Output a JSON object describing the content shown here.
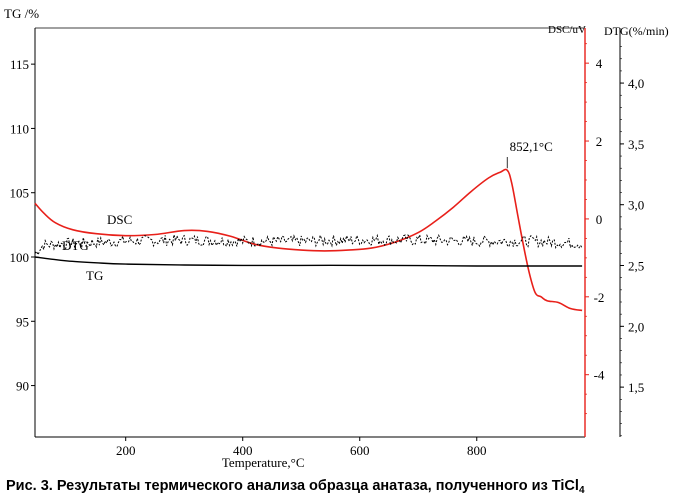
{
  "caption": {
    "text": "Рис. 3. Результаты термического анализа образца анатаза, полученного из TiCl",
    "subscript": "4"
  },
  "chart_data": {
    "type": "line",
    "xlabel": "Temperature,",
    "xlabel_unit": "°C",
    "xlim": [
      45,
      985
    ],
    "x_ticks": [
      200,
      400,
      600,
      800
    ],
    "axes": {
      "tg": {
        "label": "TG /%",
        "range": [
          86,
          117.5
        ],
        "ticks": [
          90,
          95,
          100,
          105,
          110,
          115
        ],
        "color": "#000000"
      },
      "dsc": {
        "label": "DSC/uV",
        "range": [
          -5.6,
          4.8
        ],
        "ticks": [
          -4,
          -2,
          0,
          2,
          4
        ],
        "color": "#e8201a"
      },
      "dtg": {
        "label": "DTG(%/min)",
        "range": [
          1.09,
          4.42
        ],
        "ticks": [
          "1,5",
          "2,0",
          "2,5",
          "3,0",
          "3,5",
          "4,0"
        ],
        "tick_values": [
          1.5,
          2.0,
          2.5,
          3.0,
          3.5,
          4.0
        ],
        "color": "#000000"
      }
    },
    "series": [
      {
        "name": "DSC",
        "axis": "dsc",
        "color": "#e8201a",
        "x": [
          45,
          60,
          80,
          110,
          150,
          200,
          250,
          300,
          340,
          380,
          420,
          460,
          500,
          540,
          580,
          620,
          660,
          700,
          730,
          760,
          790,
          820,
          840,
          852.1,
          860,
          870,
          880,
          890,
          900,
          910,
          920,
          940,
          960,
          980
        ],
        "y": [
          0.4,
          0.15,
          -0.1,
          -0.28,
          -0.38,
          -0.43,
          -0.4,
          -0.3,
          -0.32,
          -0.45,
          -0.65,
          -0.75,
          -0.8,
          -0.82,
          -0.8,
          -0.75,
          -0.6,
          -0.35,
          -0.05,
          0.3,
          0.7,
          1.05,
          1.2,
          1.25,
          0.9,
          0.1,
          -0.7,
          -1.4,
          -1.9,
          -2.0,
          -2.1,
          -2.15,
          -2.3,
          -2.35
        ]
      },
      {
        "name": "DTG",
        "axis": "dtg",
        "color": "#000000",
        "x": [
          45,
          60,
          100,
          150,
          200,
          300,
          400,
          500,
          600,
          700,
          800,
          900,
          980
        ],
        "y": [
          2.6,
          2.67,
          2.68,
          2.69,
          2.7,
          2.71,
          2.7,
          2.7,
          2.71,
          2.71,
          2.7,
          2.7,
          2.68
        ],
        "noisy": true
      },
      {
        "name": "TG",
        "axis": "tg",
        "color": "#000000",
        "x": [
          45,
          70,
          100,
          150,
          200,
          300,
          400,
          500,
          600,
          700,
          800,
          900,
          980
        ],
        "y": [
          100.0,
          99.85,
          99.7,
          99.55,
          99.45,
          99.38,
          99.35,
          99.35,
          99.35,
          99.33,
          99.3,
          99.3,
          99.3
        ]
      }
    ],
    "annotations": [
      {
        "text": "852,1°C",
        "x": 852.1,
        "axis": "dsc",
        "y": 1.25
      }
    ],
    "labels": {
      "dsc": "DSC",
      "dtg": "DTG",
      "tg": "TG"
    }
  }
}
